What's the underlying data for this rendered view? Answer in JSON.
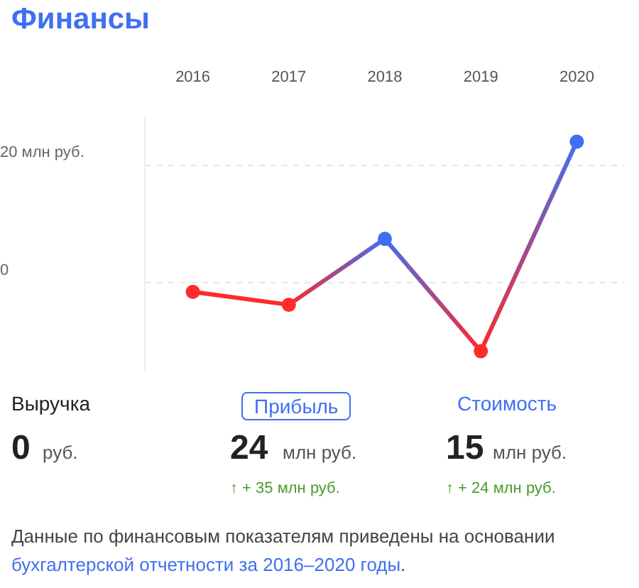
{
  "chart_data": {
    "type": "line",
    "title": "Финансы",
    "categories": [
      "2016",
      "2017",
      "2018",
      "2019",
      "2020"
    ],
    "values": [
      -1.5,
      -3.7,
      7.5,
      -11.6,
      24
    ],
    "colors": [
      "#ff2a2a",
      "#ff2a2a",
      "#3f6ff2",
      "#ff2a2a",
      "#3f6ff2"
    ],
    "ylim": [
      -15,
      28
    ],
    "yticks": [
      0,
      {
        "value": 20,
        "label": "20 млн руб."
      }
    ],
    "grid": "y",
    "legend": false,
    "marker": "circle",
    "line_style": "solid",
    "annotations": [
      "Выручка",
      "Прибыль",
      "Стоимость",
      "0",
      "руб.",
      "24",
      "млн руб.",
      "15",
      "млн руб.",
      "↑ + 35 млн руб.",
      "↑ + 24 млн руб.",
      "Данные по финансовым показателям приведены на основании",
      "бухгалтерской отчетности за 2016–2020 годы",
      "."
    ]
  }
}
